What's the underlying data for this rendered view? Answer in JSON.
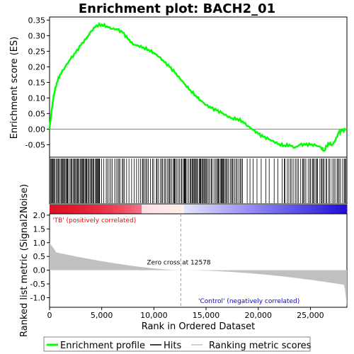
{
  "chart_data": {
    "type": "line",
    "title": "Enrichment plot: BACH2_01",
    "xlabel": "Rank in Ordered Dataset",
    "ylabel_top": "Enrichment score (ES)",
    "ylabel_bottom": "Ranked list metric (Signal2Noise)",
    "x_range": [
      0,
      28500
    ],
    "x_ticks": [
      0,
      5000,
      10000,
      15000,
      20000,
      25000
    ],
    "x_tick_labels": [
      "0",
      "5,000",
      "10,000",
      "15,000",
      "20,000",
      "25,000"
    ],
    "es_ylim": [
      -0.09,
      0.36
    ],
    "es_ticks": [
      -0.05,
      0.0,
      0.05,
      0.1,
      0.15,
      0.2,
      0.25,
      0.3,
      0.35
    ],
    "es_tick_labels": [
      "-0.05",
      "0.00",
      "0.05",
      "0.10",
      "0.15",
      "0.20",
      "0.25",
      "0.30",
      "0.35"
    ],
    "metric_ylim": [
      -1.35,
      2.05
    ],
    "metric_ticks": [
      -1.0,
      -0.5,
      0.0,
      0.5,
      1.0,
      1.5,
      2.0
    ],
    "metric_tick_labels": [
      "-1.0",
      "-0.5",
      "0.0",
      "0.5",
      "1.0",
      "1.5",
      "2.0"
    ],
    "zero_cross": 12578,
    "zero_cross_label": "Zero cross at 12578",
    "pos_label": "'TB' (positively correlated)",
    "neg_label": "'Control' (negatively correlated)",
    "es_curve": [
      [
        0,
        0.0
      ],
      [
        200,
        0.06
      ],
      [
        400,
        0.11
      ],
      [
        700,
        0.15
      ],
      [
        1000,
        0.175
      ],
      [
        1500,
        0.2
      ],
      [
        2000,
        0.225
      ],
      [
        2500,
        0.245
      ],
      [
        3000,
        0.27
      ],
      [
        3500,
        0.29
      ],
      [
        4000,
        0.315
      ],
      [
        4500,
        0.333
      ],
      [
        5000,
        0.336
      ],
      [
        5500,
        0.33
      ],
      [
        6000,
        0.322
      ],
      [
        6500,
        0.32
      ],
      [
        7000,
        0.31
      ],
      [
        7500,
        0.29
      ],
      [
        8000,
        0.272
      ],
      [
        8500,
        0.268
      ],
      [
        9000,
        0.262
      ],
      [
        9500,
        0.255
      ],
      [
        10000,
        0.245
      ],
      [
        10500,
        0.232
      ],
      [
        11000,
        0.215
      ],
      [
        11500,
        0.2
      ],
      [
        12000,
        0.182
      ],
      [
        12500,
        0.162
      ],
      [
        13000,
        0.143
      ],
      [
        13500,
        0.125
      ],
      [
        14000,
        0.108
      ],
      [
        14500,
        0.092
      ],
      [
        15000,
        0.077
      ],
      [
        15500,
        0.068
      ],
      [
        16000,
        0.06
      ],
      [
        16500,
        0.052
      ],
      [
        17000,
        0.042
      ],
      [
        17500,
        0.035
      ],
      [
        18000,
        0.033
      ],
      [
        18500,
        0.025
      ],
      [
        19000,
        0.01
      ],
      [
        19500,
        -0.002
      ],
      [
        20000,
        -0.015
      ],
      [
        20500,
        -0.025
      ],
      [
        21000,
        -0.032
      ],
      [
        21500,
        -0.04
      ],
      [
        22000,
        -0.048
      ],
      [
        22500,
        -0.052
      ],
      [
        23000,
        -0.05
      ],
      [
        23500,
        -0.06
      ],
      [
        24000,
        -0.05
      ],
      [
        24500,
        -0.05
      ],
      [
        25000,
        -0.05
      ],
      [
        25500,
        -0.052
      ],
      [
        26000,
        -0.058
      ],
      [
        26300,
        -0.07
      ],
      [
        26700,
        -0.045
      ],
      [
        27100,
        -0.05
      ],
      [
        27400,
        -0.035
      ],
      [
        27700,
        -0.012
      ],
      [
        28000,
        -0.005
      ],
      [
        28400,
        -0.003
      ]
    ],
    "hits_density": [
      {
        "from": 0,
        "to": 4800,
        "step": 90
      },
      {
        "from": 4800,
        "to": 11000,
        "step": 160
      },
      {
        "from": 11000,
        "to": 18500,
        "step": 110
      },
      {
        "from": 18500,
        "to": 22500,
        "step": 300
      },
      {
        "from": 22500,
        "to": 28400,
        "step": 140
      }
    ],
    "legend": [
      "Enrichment profile",
      "Hits",
      "Ranking metric scores"
    ],
    "colors": {
      "es_line": "#00ff00",
      "hits": "#000000",
      "metric_fill": "#c0c0c0",
      "pos_text": "#ff0000",
      "neg_text": "#0000ff",
      "zero_line": "#808080",
      "frame": "#000000"
    }
  }
}
